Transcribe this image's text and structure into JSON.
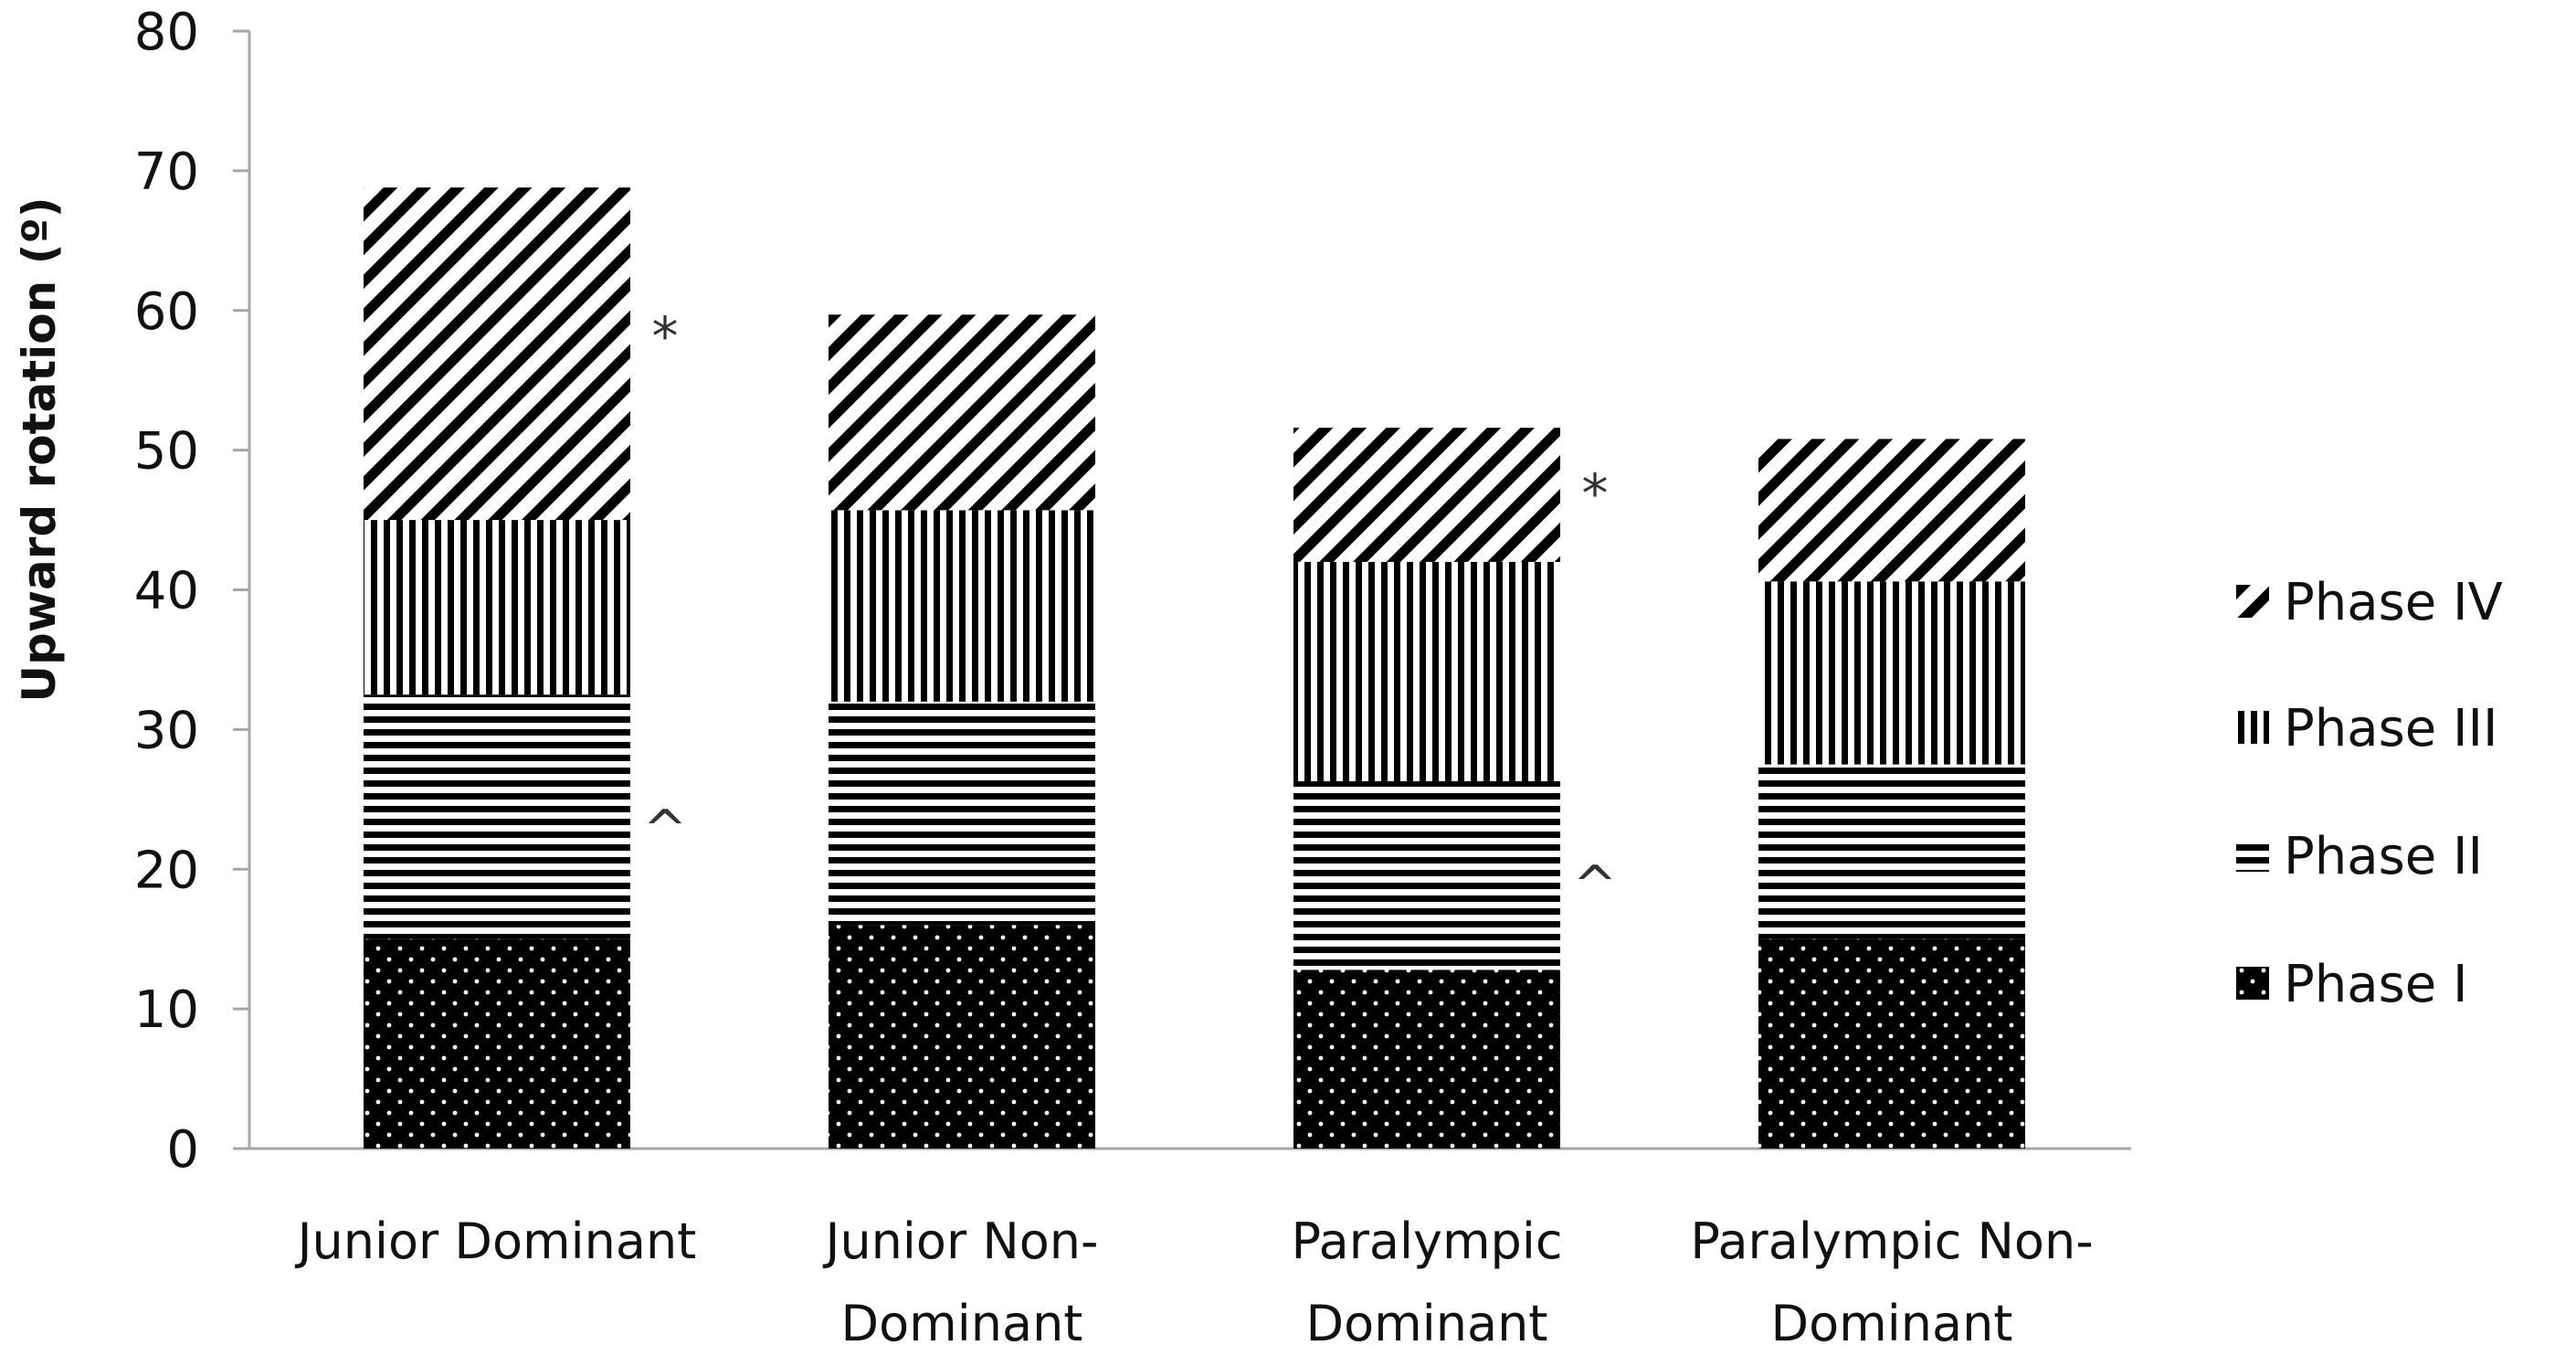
{
  "chart_data": {
    "type": "bar",
    "stacked": true,
    "title": "",
    "xlabel": "",
    "ylabel": "Upward rotation (º)",
    "ylim": [
      0,
      80
    ],
    "yticks": [
      "0",
      "10",
      "20",
      "30",
      "40",
      "50",
      "60",
      "70",
      "80"
    ],
    "categories": [
      [
        "Junior Dominant"
      ],
      [
        "Junior Non-",
        "Dominant"
      ],
      [
        "Paralympic",
        "Dominant"
      ],
      [
        "Paralympic Non-",
        "Dominant"
      ]
    ],
    "series": [
      {
        "name": "Phase I",
        "pattern": "dots",
        "values": [
          15.0,
          16.0,
          12.8,
          15.0
        ]
      },
      {
        "name": "Phase II",
        "pattern": "horizontal",
        "values": [
          17.5,
          16.0,
          13.5,
          12.5
        ]
      },
      {
        "name": "Phase III",
        "pattern": "vertical",
        "values": [
          12.5,
          13.7,
          15.7,
          13.1
        ]
      },
      {
        "name": "Phase IV",
        "pattern": "diagonal",
        "values": [
          23.8,
          14.0,
          9.6,
          10.2
        ]
      }
    ],
    "legend_order": [
      "Phase IV",
      "Phase III",
      "Phase II",
      "Phase I"
    ],
    "legend_position": "right",
    "annotations": [
      {
        "text": "*",
        "category": 0,
        "series": "Phase IV"
      },
      {
        "text": "^",
        "category": 0,
        "series": "Phase II"
      },
      {
        "text": "*",
        "category": 2,
        "series": "Phase IV"
      },
      {
        "text": "^",
        "category": 2,
        "series": "Phase II"
      }
    ],
    "colors": {
      "ink": "#000000",
      "axis": "#a6a6a6",
      "background": "#ffffff",
      "dot": "#ffffff"
    }
  }
}
